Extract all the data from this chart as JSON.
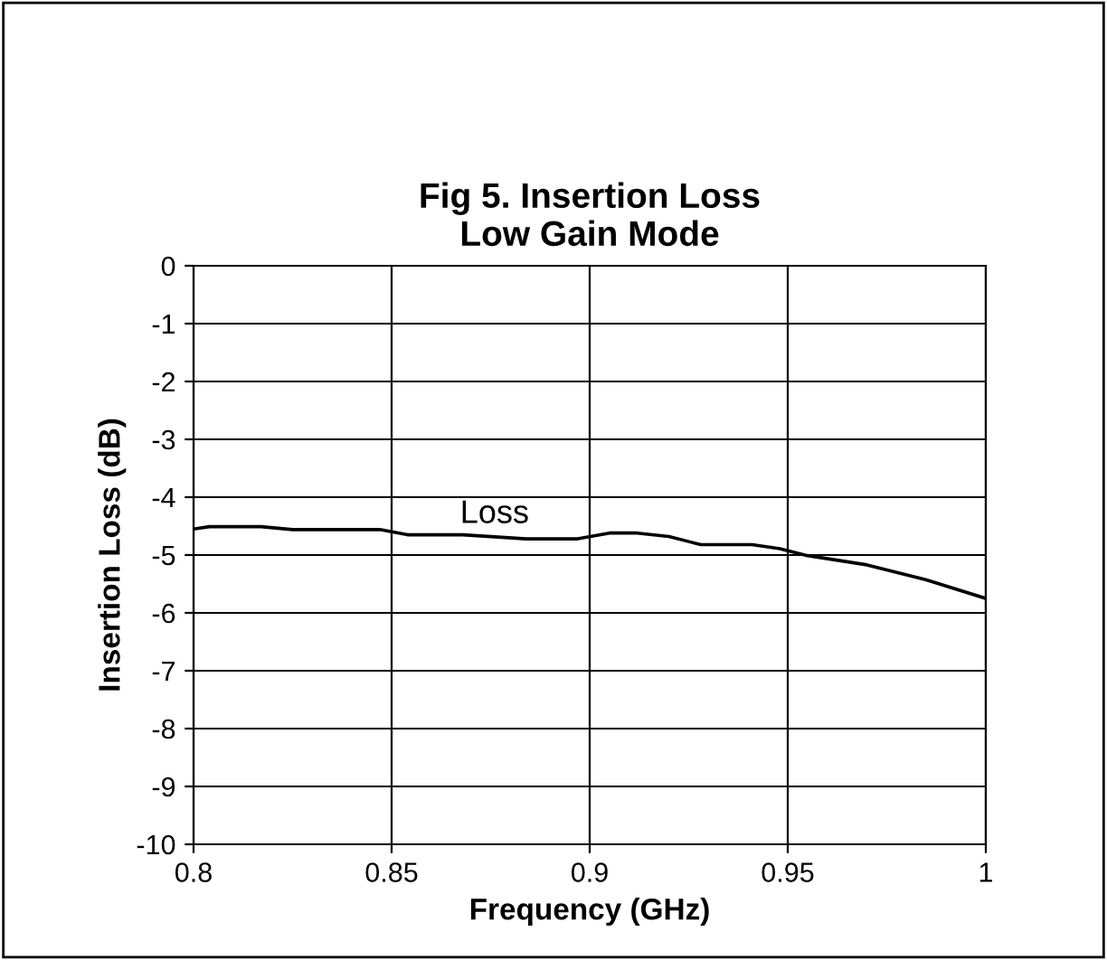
{
  "chart_data": {
    "type": "line",
    "title": "Fig 5. Insertion Loss\nLow Gain Mode",
    "xlabel": "Frequency (GHz)",
    "ylabel": "Insertion Loss (dB)",
    "series": [
      {
        "name": "Loss",
        "color": "#000000",
        "x": [
          0.8,
          0.804,
          0.817,
          0.825,
          0.847,
          0.854,
          0.868,
          0.884,
          0.897,
          0.905,
          0.912,
          0.92,
          0.928,
          0.941,
          0.948,
          0.955,
          0.97,
          0.985,
          1.0
        ],
        "values": [
          -4.55,
          -4.51,
          -4.51,
          -4.56,
          -4.56,
          -4.65,
          -4.65,
          -4.72,
          -4.72,
          -4.62,
          -4.62,
          -4.68,
          -4.82,
          -4.82,
          -4.89,
          -5.01,
          -5.17,
          -5.43,
          -5.75
        ]
      }
    ],
    "xlim": [
      0.8,
      1
    ],
    "xticks": [
      0.8,
      0.85,
      0.9,
      0.95,
      1
    ],
    "ylim": [
      -10,
      0
    ],
    "yticks": [
      -10,
      -9,
      -8,
      -7,
      -6,
      -5,
      -4,
      -3,
      -2,
      -1,
      0
    ],
    "grid": true,
    "legend": false,
    "marker": "none",
    "line_style": "solid"
  }
}
